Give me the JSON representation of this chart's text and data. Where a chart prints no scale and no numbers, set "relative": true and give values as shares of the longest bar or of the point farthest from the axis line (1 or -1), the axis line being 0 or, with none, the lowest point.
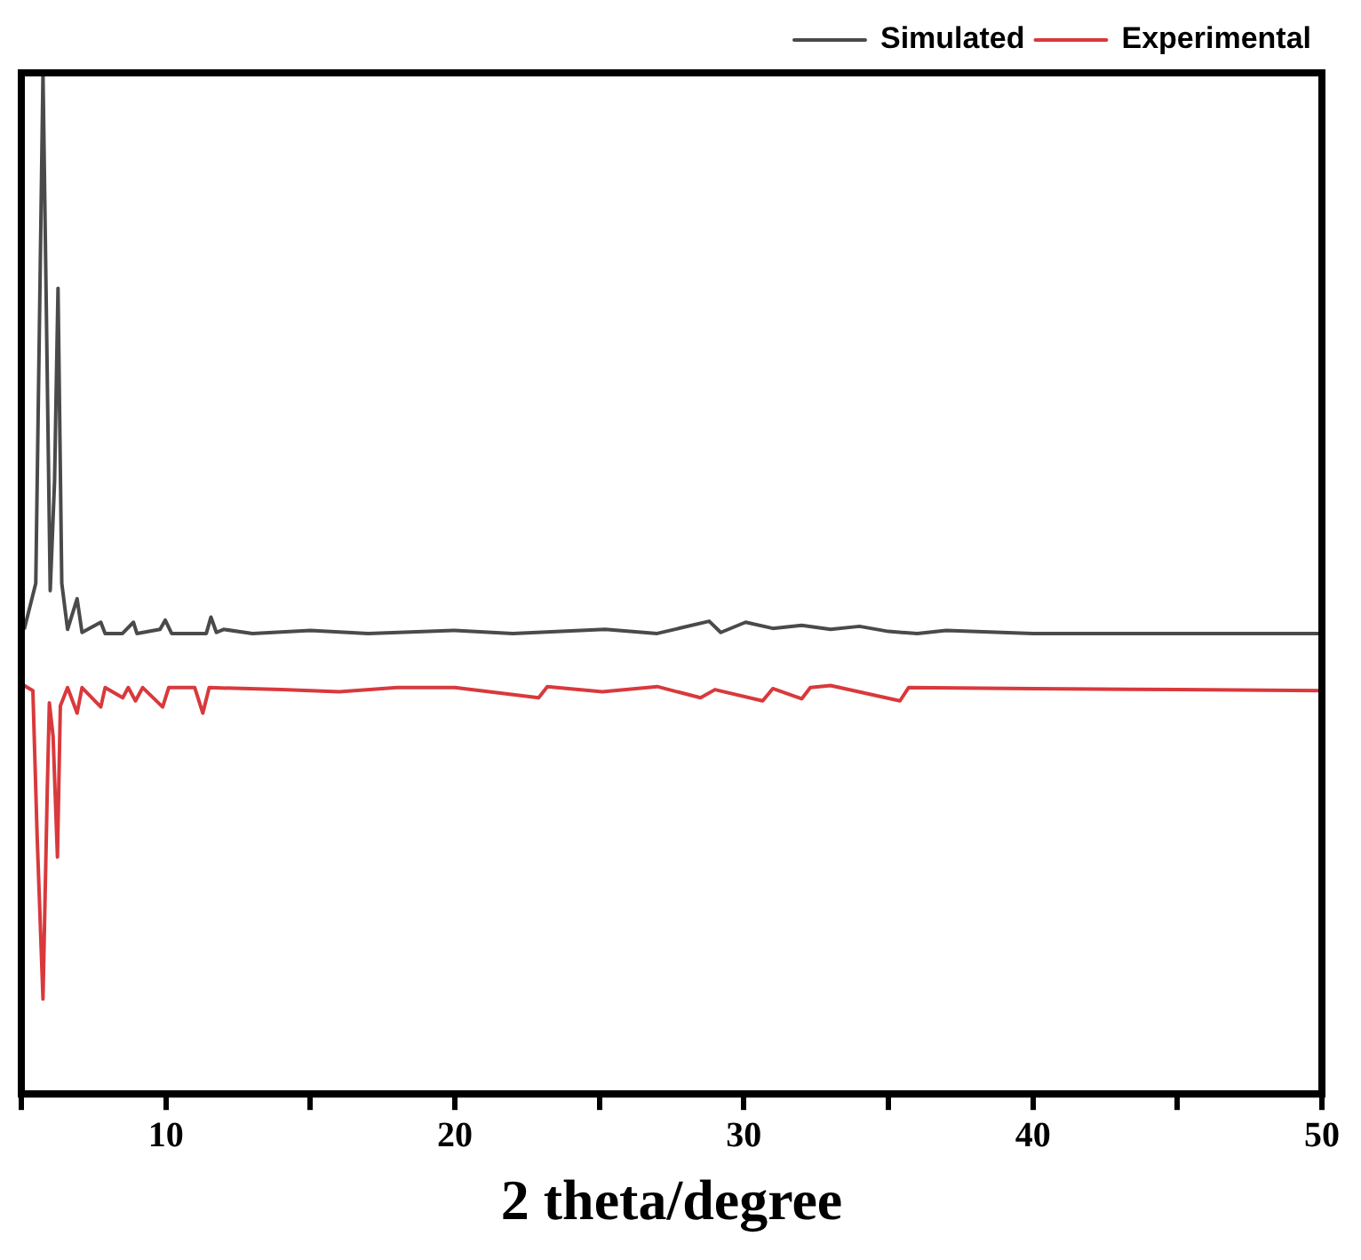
{
  "chart_data": {
    "type": "line",
    "relative": true,
    "xlabel": "2 theta/degree",
    "xlim": [
      5,
      50
    ],
    "xticks": [
      {
        "value": 5,
        "label": null
      },
      10,
      {
        "value": 15,
        "label": null
      },
      20,
      {
        "value": 25,
        "label": null
      },
      30,
      {
        "value": 35,
        "label": null
      },
      40,
      {
        "value": 45,
        "label": null
      },
      50
    ],
    "grid": false,
    "legend": "top right",
    "marker": "none",
    "line_style": "solid",
    "series": [
      {
        "name": "Simulated",
        "color": "#4a4a4a",
        "x": [
          5.1,
          5.5,
          5.65,
          5.75,
          5.85,
          6.0,
          6.15,
          6.27,
          6.4,
          6.6,
          6.93,
          7.1,
          7.75,
          7.9,
          8.5,
          8.88,
          9.0,
          9.8,
          9.98,
          10.2,
          11.4,
          11.56,
          11.75,
          12.0,
          13.0,
          15.0,
          17.0,
          20.0,
          22.0,
          25.2,
          27.0,
          28.8,
          29.2,
          30.06,
          31.0,
          32.0,
          33.0,
          34.0,
          35.0,
          36.0,
          37.0,
          40.0,
          45.0,
          50.0
        ],
        "values": [
          0.455,
          0.5,
          0.8,
          1.0,
          0.8,
          0.493,
          0.6,
          0.789,
          0.5,
          0.455,
          0.485,
          0.452,
          0.462,
          0.451,
          0.451,
          0.462,
          0.451,
          0.455,
          0.464,
          0.451,
          0.451,
          0.467,
          0.452,
          0.455,
          0.451,
          0.454,
          0.451,
          0.454,
          0.451,
          0.455,
          0.451,
          0.463,
          0.452,
          0.462,
          0.456,
          0.459,
          0.455,
          0.458,
          0.453,
          0.451,
          0.454,
          0.451,
          0.451,
          0.451
        ]
      },
      {
        "name": "Experimental",
        "color": "#d9393c",
        "x": [
          5.1,
          5.4,
          5.55,
          5.75,
          5.9,
          5.97,
          6.1,
          6.25,
          6.35,
          6.6,
          6.93,
          7.1,
          7.75,
          7.9,
          8.51,
          8.7,
          8.95,
          9.2,
          9.89,
          10.1,
          11.0,
          11.28,
          11.5,
          14.0,
          16.0,
          18.0,
          20.0,
          22.9,
          23.2,
          25.1,
          27.0,
          28.5,
          29.0,
          30.65,
          31.0,
          32.0,
          32.3,
          33.0,
          35.4,
          35.7,
          40.0,
          45.0,
          50.0
        ],
        "values": [
          0.4,
          0.395,
          0.25,
          0.093,
          0.3,
          0.383,
          0.35,
          0.232,
          0.38,
          0.398,
          0.373,
          0.398,
          0.379,
          0.398,
          0.388,
          0.398,
          0.385,
          0.398,
          0.379,
          0.398,
          0.398,
          0.373,
          0.398,
          0.396,
          0.394,
          0.398,
          0.398,
          0.388,
          0.399,
          0.394,
          0.399,
          0.388,
          0.396,
          0.385,
          0.397,
          0.387,
          0.398,
          0.4,
          0.385,
          0.398,
          0.397,
          0.396,
          0.395
        ]
      }
    ]
  }
}
